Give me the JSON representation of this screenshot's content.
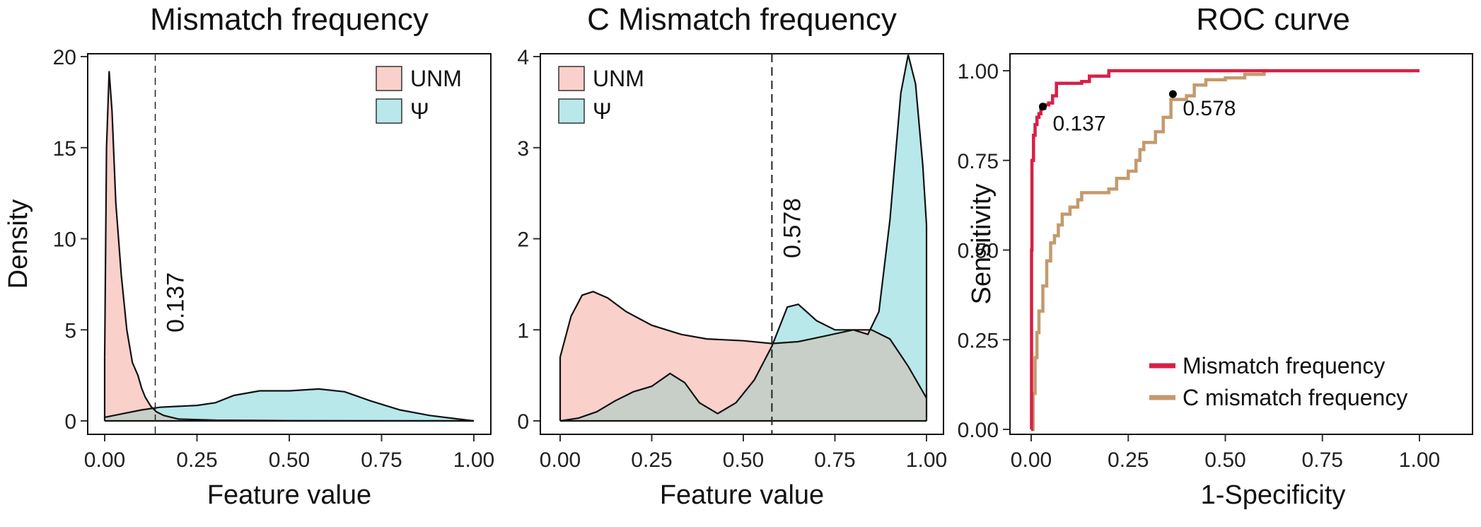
{
  "colors": {
    "unm": "#F9D0CA",
    "psi": "#B8E8EA",
    "overlap": "#C8CFC8",
    "roc_mismatch": "#D81F45",
    "roc_c_mismatch": "#C49A6C"
  },
  "chart_data": [
    {
      "type": "area",
      "title": "Mismatch frequency",
      "xlabel": "Feature value",
      "ylabel": "Density",
      "xlim": [
        0,
        1
      ],
      "ylim": [
        0,
        20
      ],
      "x_ticks": [
        "0.00",
        "0.25",
        "0.50",
        "0.75",
        "1.00"
      ],
      "y_ticks": [
        "0",
        "5",
        "10",
        "15",
        "20"
      ],
      "legend_position": "top-right",
      "threshold": {
        "x": 0.137,
        "label": "0.137"
      },
      "series": [
        {
          "name": "UNM",
          "color_key": "unm",
          "points": [
            [
              0,
              3.5
            ],
            [
              0.005,
              15
            ],
            [
              0.012,
              19.2
            ],
            [
              0.02,
              17
            ],
            [
              0.03,
              12
            ],
            [
              0.045,
              8
            ],
            [
              0.06,
              5
            ],
            [
              0.075,
              3.2
            ],
            [
              0.09,
              2.5
            ],
            [
              0.1,
              1.8
            ],
            [
              0.11,
              1.3
            ],
            [
              0.125,
              0.8
            ],
            [
              0.14,
              0.5
            ],
            [
              0.16,
              0.3
            ],
            [
              0.2,
              0.1
            ],
            [
              0.3,
              0.04
            ],
            [
              0.5,
              0.01
            ],
            [
              1,
              0
            ]
          ]
        },
        {
          "name": "Ψ",
          "color_key": "psi",
          "points": [
            [
              0,
              0.2
            ],
            [
              0.05,
              0.4
            ],
            [
              0.1,
              0.6
            ],
            [
              0.15,
              0.75
            ],
            [
              0.2,
              0.8
            ],
            [
              0.25,
              0.85
            ],
            [
              0.3,
              1.0
            ],
            [
              0.35,
              1.4
            ],
            [
              0.42,
              1.65
            ],
            [
              0.5,
              1.65
            ],
            [
              0.58,
              1.75
            ],
            [
              0.65,
              1.6
            ],
            [
              0.72,
              1.1
            ],
            [
              0.8,
              0.6
            ],
            [
              0.88,
              0.3
            ],
            [
              0.95,
              0.12
            ],
            [
              1,
              0
            ]
          ]
        }
      ]
    },
    {
      "type": "area",
      "title": "C Mismatch frequency",
      "xlabel": "Feature value",
      "ylabel": "",
      "xlim": [
        0,
        1
      ],
      "ylim": [
        0,
        4
      ],
      "x_ticks": [
        "0.00",
        "0.25",
        "0.50",
        "0.75",
        "1.00"
      ],
      "y_ticks": [
        "0",
        "1",
        "2",
        "3",
        "4"
      ],
      "legend_position": "top-left",
      "threshold": {
        "x": 0.578,
        "label": "0.578"
      },
      "series": [
        {
          "name": "UNM",
          "color_key": "unm",
          "points": [
            [
              0,
              0.7
            ],
            [
              0.03,
              1.15
            ],
            [
              0.06,
              1.38
            ],
            [
              0.09,
              1.42
            ],
            [
              0.13,
              1.35
            ],
            [
              0.18,
              1.2
            ],
            [
              0.25,
              1.05
            ],
            [
              0.33,
              0.95
            ],
            [
              0.4,
              0.9
            ],
            [
              0.5,
              0.88
            ],
            [
              0.578,
              0.85
            ],
            [
              0.65,
              0.87
            ],
            [
              0.72,
              0.93
            ],
            [
              0.8,
              1.0
            ],
            [
              0.85,
              1.0
            ],
            [
              0.9,
              0.9
            ],
            [
              0.95,
              0.6
            ],
            [
              1,
              0.25
            ]
          ]
        },
        {
          "name": "Ψ",
          "color_key": "psi",
          "points": [
            [
              0,
              0
            ],
            [
              0.05,
              0.03
            ],
            [
              0.1,
              0.1
            ],
            [
              0.15,
              0.22
            ],
            [
              0.2,
              0.32
            ],
            [
              0.25,
              0.38
            ],
            [
              0.3,
              0.52
            ],
            [
              0.34,
              0.42
            ],
            [
              0.38,
              0.2
            ],
            [
              0.43,
              0.08
            ],
            [
              0.48,
              0.2
            ],
            [
              0.53,
              0.45
            ],
            [
              0.578,
              0.82
            ],
            [
              0.62,
              1.25
            ],
            [
              0.65,
              1.28
            ],
            [
              0.7,
              1.1
            ],
            [
              0.75,
              1.0
            ],
            [
              0.8,
              1.0
            ],
            [
              0.84,
              0.95
            ],
            [
              0.87,
              1.2
            ],
            [
              0.9,
              2.2
            ],
            [
              0.93,
              3.6
            ],
            [
              0.95,
              4.02
            ],
            [
              0.97,
              3.7
            ],
            [
              0.99,
              2.8
            ],
            [
              1,
              2.15
            ]
          ]
        }
      ]
    },
    {
      "type": "line",
      "title": "ROC curve",
      "xlabel": "1-Specificity",
      "ylabel": "Sensitivity",
      "xlim": [
        0,
        1
      ],
      "ylim": [
        0,
        1
      ],
      "x_ticks": [
        "0.00",
        "0.25",
        "0.50",
        "0.75",
        "1.00"
      ],
      "y_ticks": [
        "0.00",
        "0.25",
        "0.50",
        "0.75",
        "1.00"
      ],
      "legend_position": "bottom-right",
      "series": [
        {
          "name": "Mismatch frequency",
          "color_key": "roc_mismatch",
          "points": [
            [
              0,
              0
            ],
            [
              0.001,
              0.5
            ],
            [
              0.002,
              0.75
            ],
            [
              0.006,
              0.82
            ],
            [
              0.01,
              0.85
            ],
            [
              0.015,
              0.87
            ],
            [
              0.02,
              0.88
            ],
            [
              0.025,
              0.895
            ],
            [
              0.035,
              0.905
            ],
            [
              0.045,
              0.91
            ],
            [
              0.055,
              0.93
            ],
            [
              0.065,
              0.965
            ],
            [
              0.1,
              0.965
            ],
            [
              0.13,
              0.97
            ],
            [
              0.15,
              0.985
            ],
            [
              0.2,
              0.985
            ],
            [
              0.2,
              1.0
            ],
            [
              1.0,
              1.0
            ]
          ],
          "cutoff": {
            "point": [
              0.03,
              0.9
            ],
            "label": "0.137"
          }
        },
        {
          "name": "C mismatch frequency",
          "color_key": "roc_c_mismatch",
          "points": [
            [
              0,
              0
            ],
            [
              0.005,
              0.1
            ],
            [
              0.01,
              0.2
            ],
            [
              0.015,
              0.27
            ],
            [
              0.02,
              0.33
            ],
            [
              0.03,
              0.4
            ],
            [
              0.04,
              0.47
            ],
            [
              0.05,
              0.52
            ],
            [
              0.06,
              0.54
            ],
            [
              0.07,
              0.57
            ],
            [
              0.08,
              0.6
            ],
            [
              0.1,
              0.62
            ],
            [
              0.12,
              0.64
            ],
            [
              0.13,
              0.66
            ],
            [
              0.2,
              0.67
            ],
            [
              0.22,
              0.7
            ],
            [
              0.25,
              0.72
            ],
            [
              0.27,
              0.75
            ],
            [
              0.28,
              0.78
            ],
            [
              0.29,
              0.8
            ],
            [
              0.31,
              0.8
            ],
            [
              0.32,
              0.83
            ],
            [
              0.34,
              0.87
            ],
            [
              0.36,
              0.92
            ],
            [
              0.4,
              0.93
            ],
            [
              0.42,
              0.96
            ],
            [
              0.45,
              0.975
            ],
            [
              0.5,
              0.98
            ],
            [
              0.55,
              0.99
            ],
            [
              0.6,
              1.0
            ],
            [
              0.61,
              1.0
            ]
          ],
          "cutoff": {
            "point": [
              0.365,
              0.935
            ],
            "label": "0.578"
          }
        }
      ]
    }
  ]
}
